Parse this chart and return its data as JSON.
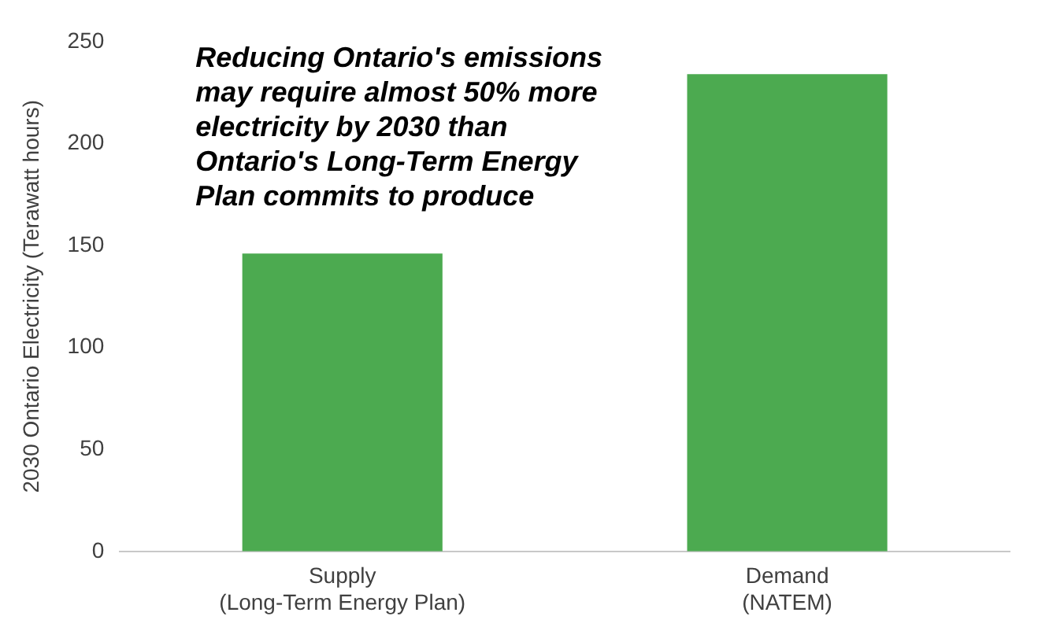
{
  "chart_data": {
    "type": "bar",
    "categories": [
      "Supply (Long-Term Energy Plan)",
      "Demand (NATEM)"
    ],
    "values": [
      146,
      234
    ],
    "color": "#4caa50",
    "ylabel": "2030 Ontario Electricity (Terawatt hours)",
    "ylim": [
      0,
      250
    ],
    "yticks": [
      0,
      50,
      100,
      150,
      200,
      250
    ],
    "grid": false,
    "legend": false,
    "annotations": [
      "Reducing Ontario's emissions may require almost 50% more electricity by 2030 than Ontario's Long-Term Energy Plan commits to produce"
    ]
  }
}
